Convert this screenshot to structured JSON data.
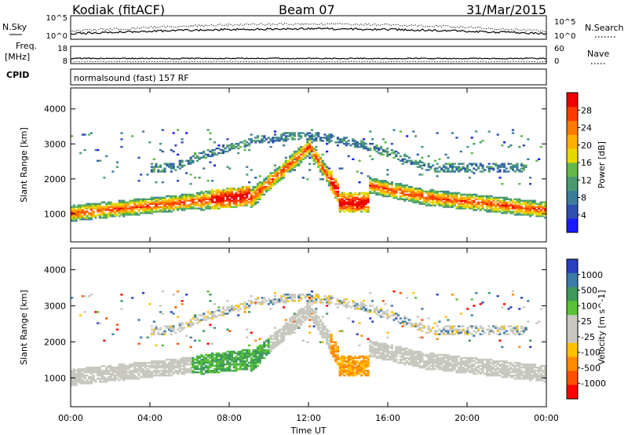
{
  "header": {
    "station": "Kodiak (fitACF)",
    "beam": "Beam 07",
    "date": "31/Mar/2015"
  },
  "strip_labels": {
    "nsky": "N.Sky",
    "freq_line1": "Freq.",
    "freq_line2": "[MHz]",
    "cpid": "CPID",
    "nsearch": "N.Search",
    "nave": "Nave",
    "cpid_text": "normalsound (fast) 157 RF"
  },
  "colors": {
    "power_scale": [
      "#1a1aff",
      "#2e4fb0",
      "#3c7d9e",
      "#4a9a70",
      "#62b84a",
      "#e6d800",
      "#ffb000",
      "#ff7a00",
      "#ff3a00",
      "#ee0000"
    ],
    "velocity_scale": [
      "#2a3fbf",
      "#3c7aa8",
      "#3c9a5c",
      "#5ac234",
      "#c8c8c0",
      "#c8c8c0",
      "#ffc000",
      "#ff8a00",
      "#ff5000",
      "#ff0000"
    ],
    "ground_scatter": "#c0c0b8"
  },
  "chart_data": [
    {
      "type": "line",
      "name": "noise-strip",
      "left_ticks": [
        "10^5",
        "10^0"
      ],
      "right_ticks": [
        "10^5",
        "10^0"
      ]
    },
    {
      "type": "line",
      "name": "freq-strip",
      "left_ticks": [
        "18",
        "8"
      ],
      "right_ticks": [
        "60",
        "0"
      ]
    },
    {
      "type": "heatmap",
      "name": "power",
      "xlabel": "",
      "ylabel": "Slant Range [km]",
      "xlim": [
        0,
        24
      ],
      "ylim": [
        200,
        4600
      ],
      "yticks": [
        1000,
        2000,
        3000,
        4000
      ],
      "colorbar_label": "Power [dB]",
      "colorbar_ticks": [
        4,
        8,
        12,
        16,
        20,
        24,
        28
      ],
      "colorbar_range": [
        0,
        32
      ]
    },
    {
      "type": "heatmap",
      "name": "velocity",
      "xlabel": "Time UT",
      "ylabel": "Slant Range [km]",
      "xlim": [
        0,
        24
      ],
      "ylim": [
        200,
        4600
      ],
      "yticks": [
        1000,
        2000,
        3000,
        4000
      ],
      "xticks": [
        "00:00",
        "04:00",
        "08:00",
        "12:00",
        "16:00",
        "20:00",
        "00:00"
      ],
      "colorbar_label": "Velocity [m s^-1]",
      "colorbar_ticks": [
        "1000",
        "500",
        "100",
        "25",
        "-25",
        "-100",
        "-500",
        "-1000"
      ]
    }
  ]
}
